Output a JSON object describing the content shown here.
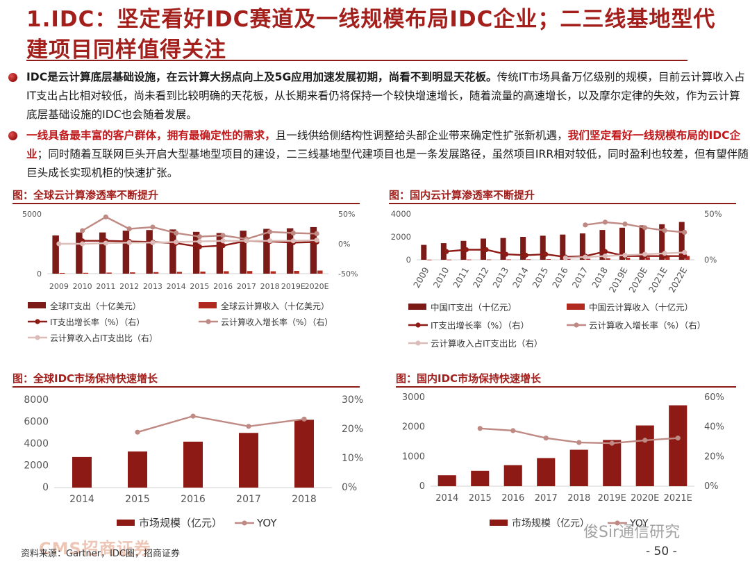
{
  "header": {
    "title": "1.IDC：坚定看好IDC赛道及一线规模布局IDC企业；二三线基地型代建项目同样值得关注"
  },
  "bullets": [
    {
      "lead": "IDC是云计算底层基础设施，在云计算大拐点向上及5G应用加速发展初期，尚看不到明显天花板。",
      "body": "传统IT市场具备万亿级别的规模，目前云计算收入占IT支出占比相对较低，尚未看到比较明确的天花板，从长期来看仍将保持一个较快增速增长，随着流量的高速增长，以及摩尔定律的失效，作为云计算底层基础设施的IDC也会随着发展。"
    },
    {
      "lead": "一线具备最丰富的客户群体，拥有最确定性的需求，",
      "mid": "且一线供给侧结构性调整给头部企业带来确定性扩张新机遇，",
      "lead2": "我们坚定看好一线规模布局的IDC企业",
      "body": "；同时随着互联网巨头开启大型基地型项目的建设，二三线基地型代建项目也是一条发展路径，虽然项目IRR相对较低，同时盈利也较差，但有望伴随巨头成长实现机柜的快速扩张。"
    }
  ],
  "figures": {
    "fig1_title": "图：全球云计算渗透率不断提升",
    "fig2_title": "图：国内云计算渗透率不断提升",
    "fig3_title": "图：全球IDC市场保持快速增长",
    "fig4_title": "图：国内IDC市场保持快速增长"
  },
  "chart_data": [
    {
      "type": "bar",
      "categories": [
        "2009",
        "2010",
        "2011",
        "2012",
        "2013",
        "2014",
        "2015",
        "2016",
        "2017",
        "2018",
        "2019E",
        "2020E"
      ],
      "y_left_ticks": [
        "5000",
        "0"
      ],
      "y_right_ticks": [
        "50%",
        "0%",
        "-50%"
      ],
      "ylim_left": [
        0,
        5000
      ],
      "ylim_right": [
        -50,
        50
      ],
      "series": [
        {
          "name": "全球IT支出（十亿美元）",
          "axis": "left",
          "kind": "bar",
          "color": "#7b1a17",
          "values": [
            3200,
            3450,
            3450,
            3600,
            3650,
            3700,
            3500,
            3400,
            3600,
            3750,
            3800,
            3900
          ]
        },
        {
          "name": "全球云计算收入（十亿美元）",
          "axis": "left",
          "kind": "bar",
          "color": "#b02a20",
          "values": [
            60,
            70,
            90,
            110,
            130,
            150,
            175,
            205,
            220,
            200,
            230,
            260
          ]
        },
        {
          "name": "IT支出增长率（%）（右）",
          "axis": "right",
          "kind": "line",
          "color": "#8e1a16",
          "values": [
            null,
            5,
            5,
            4,
            3,
            1,
            -5,
            -3,
            5,
            4,
            2,
            3
          ]
        },
        {
          "name": "云计算收入增长率（%）（右）",
          "axis": "right",
          "kind": "line",
          "color": "#c08a84",
          "values": [
            null,
            22,
            45,
            25,
            28,
            18,
            12,
            14,
            8,
            20,
            18,
            17
          ]
        },
        {
          "name": "云计算收入占IT支出比（右）",
          "axis": "right",
          "kind": "line",
          "color": "#dcbcb8",
          "values": [
            0,
            0,
            1,
            2,
            2,
            3,
            4,
            5,
            5,
            5,
            5,
            6
          ]
        }
      ]
    },
    {
      "type": "bar",
      "categories": [
        "2009",
        "2010",
        "2011",
        "2012",
        "2013",
        "2014",
        "2015",
        "2016",
        "2017",
        "2018",
        "2019E",
        "2020E",
        "2021E",
        "2022E"
      ],
      "y_left_ticks": [
        "4000",
        "2000",
        "0"
      ],
      "y_right_ticks": [
        "50%",
        "0%"
      ],
      "ylim_left": [
        0,
        4000
      ],
      "ylim_right": [
        0,
        50
      ],
      "series": [
        {
          "name": "中国IT支出（十亿元）",
          "axis": "left",
          "kind": "bar",
          "color": "#7b1a17",
          "values": [
            1300,
            1450,
            1650,
            1850,
            1900,
            2000,
            2100,
            2200,
            2300,
            2600,
            2800,
            3000,
            3100,
            3300
          ]
        },
        {
          "name": "中国云计算收入（十亿元）",
          "axis": "left",
          "kind": "bar",
          "color": "#b02a20",
          "values": [
            10,
            15,
            20,
            25,
            30,
            40,
            55,
            70,
            95,
            130,
            170,
            220,
            270,
            330
          ]
        },
        {
          "name": "IT支出增长率（%）（右）",
          "axis": "right",
          "kind": "line",
          "color": "#8e1a16",
          "values": [
            null,
            9,
            11,
            11,
            6,
            5,
            6,
            3,
            4,
            9,
            4,
            4,
            4,
            4
          ]
        },
        {
          "name": "云计算收入增长率（%）（右）",
          "axis": "right",
          "kind": "line",
          "color": "#c08a84",
          "values": [
            null,
            null,
            null,
            null,
            null,
            null,
            null,
            null,
            38,
            41,
            39,
            35,
            32,
            30
          ]
        },
        {
          "name": "云计算收入占IT支出比（右）",
          "axis": "right",
          "kind": "line",
          "color": "#dcbcb8",
          "values": [
            null,
            null,
            null,
            null,
            null,
            null,
            null,
            2,
            3,
            4,
            5,
            6,
            7,
            8
          ]
        }
      ]
    },
    {
      "type": "bar",
      "categories": [
        "2014",
        "2015",
        "2016",
        "2017",
        "2018"
      ],
      "y_left_ticks": [
        "8000",
        "6000",
        "4000",
        "2000",
        "0"
      ],
      "y_right_ticks": [
        "30%",
        "20%",
        "10%",
        "0%"
      ],
      "ylim_left": [
        0,
        8000
      ],
      "ylim_right": [
        0,
        30
      ],
      "series": [
        {
          "name": "市场规模（亿元）",
          "axis": "left",
          "kind": "bar",
          "color": "#8e1a16",
          "values": [
            2800,
            3300,
            4200,
            5000,
            6200
          ]
        },
        {
          "name": "YOY",
          "axis": "right",
          "kind": "line",
          "color": "#c08a84",
          "values": [
            null,
            19,
            24.5,
            21,
            23.5
          ]
        }
      ]
    },
    {
      "type": "bar",
      "categories": [
        "2014",
        "2015",
        "2016",
        "2017",
        "2018",
        "2019E",
        "2020E",
        "2021E"
      ],
      "y_left_ticks": [
        "3000",
        "2000",
        "1000",
        "0"
      ],
      "y_right_ticks": [
        "60%",
        "40%",
        "20%",
        "0%"
      ],
      "ylim_left": [
        0,
        3000
      ],
      "ylim_right": [
        0,
        60
      ],
      "series": [
        {
          "name": "市场规模（亿元）",
          "axis": "left",
          "kind": "bar",
          "color": "#8e1a16",
          "values": [
            370,
            520,
            710,
            950,
            1230,
            1560,
            2050,
            2730
          ]
        },
        {
          "name": "YOY",
          "axis": "right",
          "kind": "line",
          "color": "#c08a84",
          "values": [
            null,
            39,
            37.5,
            32.5,
            29.5,
            29,
            31,
            32.5
          ]
        }
      ]
    }
  ],
  "footer": {
    "source": "资料来源：Gartner，IDC圈，招商证券",
    "page_number": "- 50 -",
    "logo_text": "CMS招商证券",
    "watermark": "俊Sir通信研究"
  }
}
